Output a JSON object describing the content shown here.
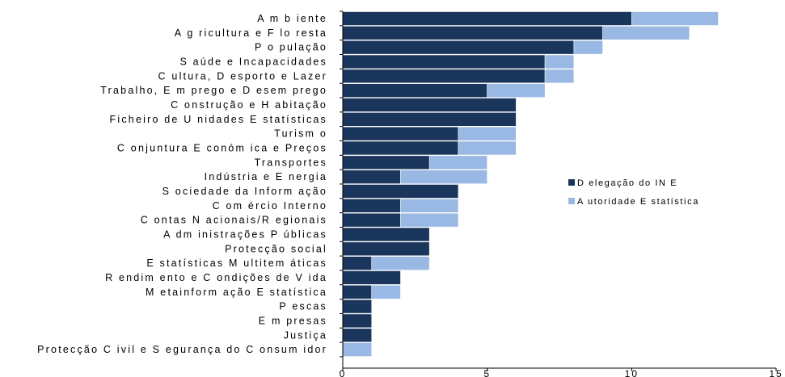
{
  "chart_data": {
    "type": "bar",
    "orientation": "horizontal",
    "stacked": true,
    "categories": [
      "A m b iente",
      "A g ricultura e F lo resta",
      "P o pulação",
      "S aúde e Incapacidades",
      "C ultura, D esporto e Lazer",
      "Trabalho, E m prego e D esem prego",
      "C onstrução e H abitação",
      "Ficheiro de U nidades E statísticas",
      "Turism o",
      "C onjuntura E conóm ica e Preços",
      "Transportes",
      "Indústria e E nergia",
      "S ociedade da Inform ação",
      "C om ércio Interno",
      "C ontas N acionais/R egionais",
      "A dm inistrações P úblicas",
      "Protecção social",
      "E statísticas M ultitem áticas",
      "R endim ento e C ondições de V ida",
      "M etainform ação E statística",
      "P escas",
      "E m presas",
      "Justiça",
      "Protecção C ivil e S egurança do C onsum idor"
    ],
    "series": [
      {
        "name": "D elegação do IN E",
        "color": "#1b365d",
        "values": [
          10,
          9,
          8,
          7,
          7,
          5,
          6,
          6,
          4,
          4,
          3,
          2,
          4,
          2,
          2,
          3,
          3,
          1,
          2,
          1,
          1,
          1,
          1,
          0
        ]
      },
      {
        "name": "A utoridade E statística",
        "color": "#99b8e3",
        "values": [
          3,
          3,
          1,
          1,
          1,
          2,
          0,
          0,
          2,
          2,
          2,
          3,
          0,
          2,
          2,
          0,
          0,
          2,
          0,
          1,
          0,
          0,
          0,
          1
        ]
      }
    ],
    "xlim": [
      0,
      15
    ],
    "xticks": [
      0,
      5,
      10,
      15
    ],
    "legend_position": "right",
    "grid": false,
    "title": "",
    "xlabel": "",
    "ylabel": ""
  }
}
